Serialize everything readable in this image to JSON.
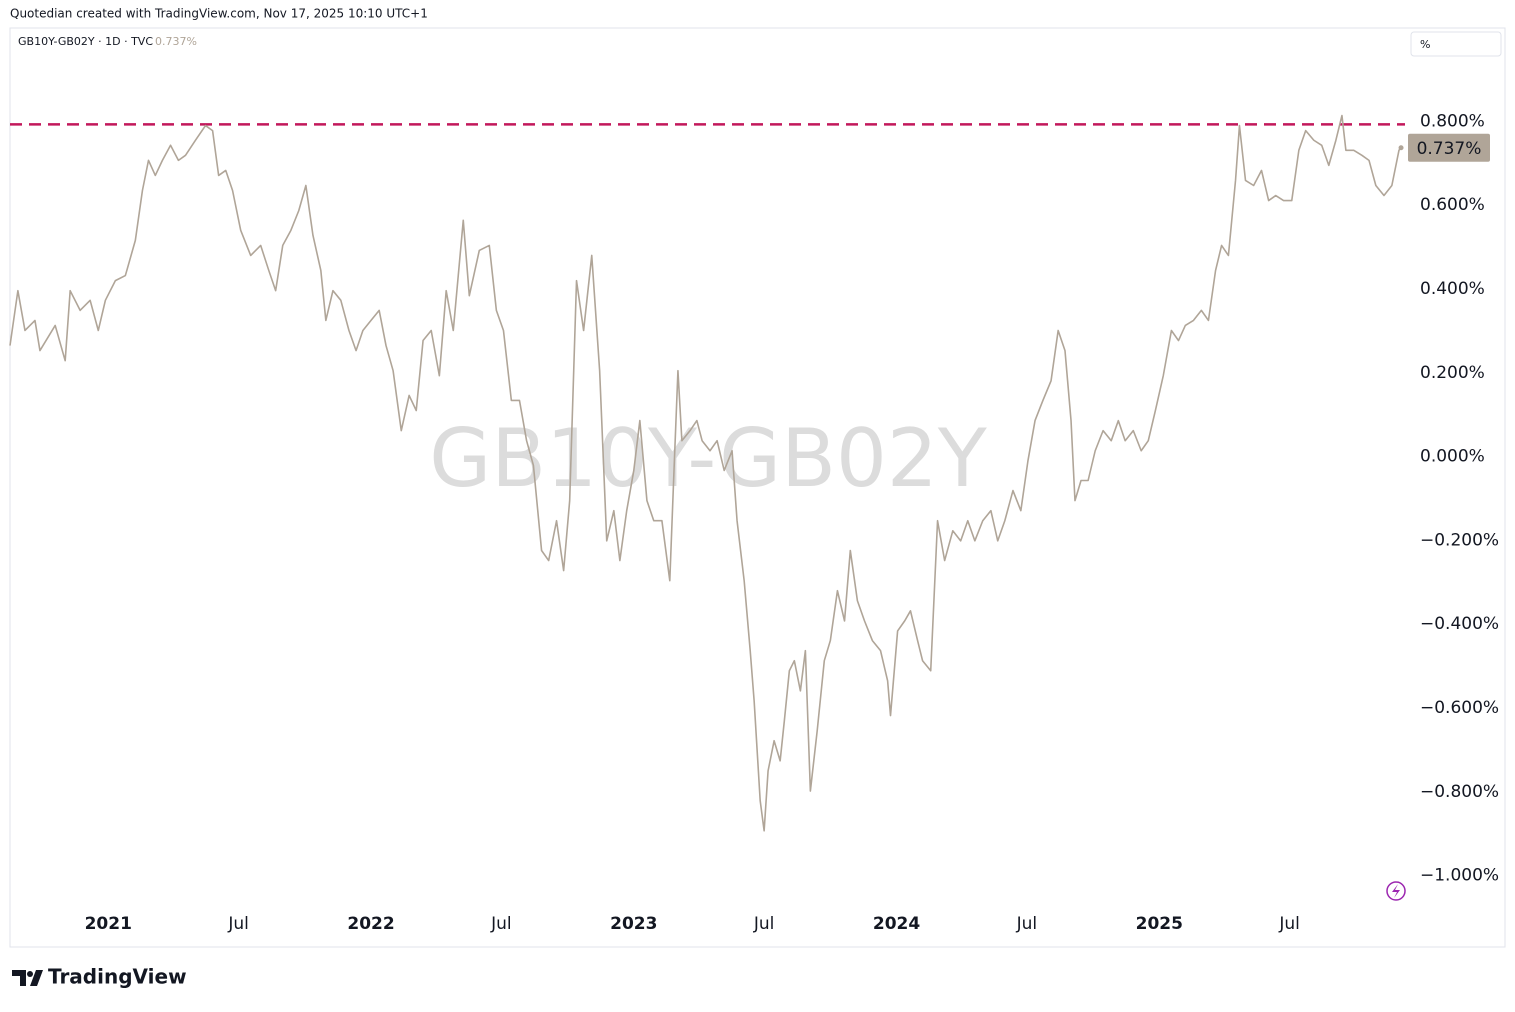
{
  "header": "Quotedian created with TradingView.com, Nov 17, 2025 10:10 UTC+1",
  "footer_brand": "TradingView",
  "chart_data": {
    "type": "line",
    "watermark": "GB10Y-GB02Y",
    "unit_button": "%",
    "last_label": "0.737%",
    "series": [
      {
        "name": "GB10Y-GB02Y · 1D · TVC",
        "color": "#b0a598",
        "values": [
          0.265,
          0.396,
          0.301,
          0.325,
          0.253,
          0.313,
          0.229,
          0.396,
          0.349,
          0.373,
          0.301,
          0.373,
          0.42,
          0.432,
          0.516,
          0.635,
          0.707,
          0.671,
          0.707,
          0.743,
          0.707,
          0.719,
          0.755,
          0.79,
          0.778,
          0.671,
          0.683,
          0.635,
          0.54,
          0.48,
          0.504,
          0.444,
          0.396,
          0.504,
          0.54,
          0.587,
          0.647,
          0.528,
          0.444,
          0.325,
          0.396,
          0.373,
          0.301,
          0.253,
          0.301,
          0.325,
          0.349,
          0.265,
          0.205,
          0.062,
          0.146,
          0.11,
          0.277,
          0.301,
          0.193,
          0.396,
          0.301,
          0.564,
          0.384,
          0.492,
          0.504,
          0.349,
          0.301,
          0.134,
          0.134,
          0.038,
          -0.021,
          -0.224,
          -0.248,
          -0.153,
          -0.272,
          -0.105,
          0.42,
          0.301,
          0.48,
          0.205,
          -0.201,
          -0.129,
          -0.248,
          -0.129,
          -0.033,
          0.086,
          -0.105,
          -0.153,
          -0.153,
          -0.296,
          -0.033,
          0.205,
          0.038,
          0.062,
          0.086,
          0.038,
          0.014,
          0.038,
          -0.033,
          0.014,
          -0.153,
          -0.296,
          -0.463,
          -0.583,
          -0.821,
          -0.893,
          -0.75,
          -0.678,
          -0.726,
          -0.63,
          -0.511,
          -0.487,
          -0.559,
          -0.463,
          -0.798,
          -0.654,
          -0.487,
          -0.439,
          -0.32,
          -0.392,
          -0.224,
          -0.344,
          -0.392,
          -0.439,
          -0.463,
          -0.535,
          -0.618,
          -0.416,
          -0.392,
          -0.368,
          -0.439,
          -0.487,
          -0.511,
          -0.153,
          -0.248,
          -0.177,
          -0.201,
          -0.153,
          -0.201,
          -0.153,
          -0.129,
          -0.201,
          -0.153,
          -0.081,
          -0.129,
          -0.01,
          0.086,
          0.134,
          0.181,
          0.301,
          0.253,
          0.086,
          -0.105,
          -0.057,
          -0.057,
          0.014,
          0.062,
          0.038,
          0.086,
          0.038,
          0.062,
          0.014,
          0.038,
          0.11,
          0.193,
          0.301,
          0.277,
          0.313,
          0.325,
          0.349,
          0.325,
          0.444,
          0.504,
          0.48,
          0.659,
          0.79,
          0.659,
          0.647,
          0.683,
          0.611,
          0.623,
          0.611,
          0.611,
          0.731,
          0.778,
          0.755,
          0.743,
          0.695,
          0.755,
          0.814,
          0.731,
          0.731,
          0.719,
          0.707,
          0.647,
          0.623,
          0.647,
          0.731,
          0.737
        ]
      }
    ],
    "x": [
      2020.626,
      2020.656,
      2020.683,
      2020.721,
      2020.74,
      2020.798,
      2020.836,
      2020.855,
      2020.893,
      2020.931,
      2020.962,
      2020.989,
      2021.027,
      2021.065,
      2021.103,
      2021.13,
      2021.153,
      2021.179,
      2021.206,
      2021.237,
      2021.267,
      2021.294,
      2021.332,
      2021.37,
      2021.397,
      2021.42,
      2021.447,
      2021.473,
      2021.504,
      2021.542,
      2021.58,
      2021.611,
      2021.637,
      2021.664,
      2021.695,
      2021.725,
      2021.752,
      2021.779,
      2021.809,
      2021.828,
      2021.855,
      2021.885,
      2021.916,
      2021.943,
      2021.969,
      2022.0,
      2022.031,
      2022.057,
      2022.084,
      2022.115,
      2022.145,
      2022.172,
      2022.198,
      2022.229,
      2022.26,
      2022.286,
      2022.313,
      2022.351,
      2022.374,
      2022.412,
      2022.45,
      2022.477,
      2022.504,
      2022.534,
      2022.565,
      2022.592,
      2022.618,
      2022.649,
      2022.676,
      2022.706,
      2022.733,
      2022.756,
      2022.782,
      2022.809,
      2022.84,
      2022.87,
      2022.897,
      2022.924,
      2022.947,
      2022.973,
      2023.0,
      2023.023,
      2023.05,
      2023.076,
      2023.107,
      2023.137,
      2023.153,
      2023.168,
      2023.183,
      2023.214,
      2023.24,
      2023.26,
      2023.29,
      2023.317,
      2023.344,
      2023.374,
      2023.393,
      2023.42,
      2023.443,
      2023.458,
      2023.481,
      2023.496,
      2023.511,
      2023.534,
      2023.557,
      2023.573,
      2023.592,
      2023.611,
      2023.634,
      2023.653,
      2023.672,
      2023.698,
      2023.725,
      2023.748,
      2023.775,
      2023.802,
      2023.824,
      2023.851,
      2023.878,
      2023.908,
      2023.939,
      2023.966,
      2023.977,
      2024.004,
      2024.031,
      2024.053,
      2024.08,
      2024.099,
      2024.13,
      2024.156,
      2024.183,
      2024.214,
      2024.244,
      2024.271,
      2024.298,
      2024.328,
      2024.359,
      2024.385,
      2024.412,
      2024.443,
      2024.473,
      2024.5,
      2024.527,
      2024.557,
      2024.588,
      2024.615,
      2024.641,
      2024.664,
      2024.679,
      2024.702,
      2024.729,
      2024.756,
      2024.786,
      2024.817,
      2024.844,
      2024.87,
      2024.901,
      2024.931,
      2024.958,
      2024.985,
      2025.015,
      2025.046,
      2025.073,
      2025.099,
      2025.13,
      2025.16,
      2025.187,
      2025.214,
      2025.237,
      2025.263,
      2025.29,
      2025.305,
      2025.328,
      2025.359,
      2025.389,
      2025.416,
      2025.443,
      2025.473,
      2025.504,
      2025.531,
      2025.557,
      2025.588,
      2025.618,
      2025.645,
      2025.672,
      2025.695,
      2025.71,
      2025.74,
      2025.771,
      2025.798,
      2025.824,
      2025.855,
      2025.885,
      2025.912,
      2025.92
    ],
    "xlim": [
      2020.626,
      2025.935
    ],
    "xticks": [
      {
        "value": 2021,
        "label": "2021"
      },
      {
        "value": 2021.496,
        "label": "Jul"
      },
      {
        "value": 2022,
        "label": "2022"
      },
      {
        "value": 2022.496,
        "label": "Jul"
      },
      {
        "value": 2023,
        "label": "2023"
      },
      {
        "value": 2023.496,
        "label": "Jul"
      },
      {
        "value": 2024,
        "label": "2024"
      },
      {
        "value": 2024.496,
        "label": "Jul"
      },
      {
        "value": 2025,
        "label": "2025"
      },
      {
        "value": 2025.496,
        "label": "Jul"
      }
    ],
    "ylim": [
      -1.07,
      1.03
    ],
    "yticks": [
      {
        "value": 0.8,
        "label": "0.800%"
      },
      {
        "value": 0.6,
        "label": "0.600%"
      },
      {
        "value": 0.4,
        "label": "0.400%"
      },
      {
        "value": 0.2,
        "label": "0.200%"
      },
      {
        "value": 0,
        "label": "0.000%"
      },
      {
        "value": -0.2,
        "label": "−0.200%"
      },
      {
        "value": -0.4,
        "label": "−0.400%"
      },
      {
        "value": -0.6,
        "label": "−0.600%"
      },
      {
        "value": -0.8,
        "label": "−0.800%"
      },
      {
        "value": -1.0,
        "label": "−1.000%"
      }
    ],
    "hline": {
      "value": 0.793,
      "color": "#c2185b"
    },
    "grid": false
  }
}
